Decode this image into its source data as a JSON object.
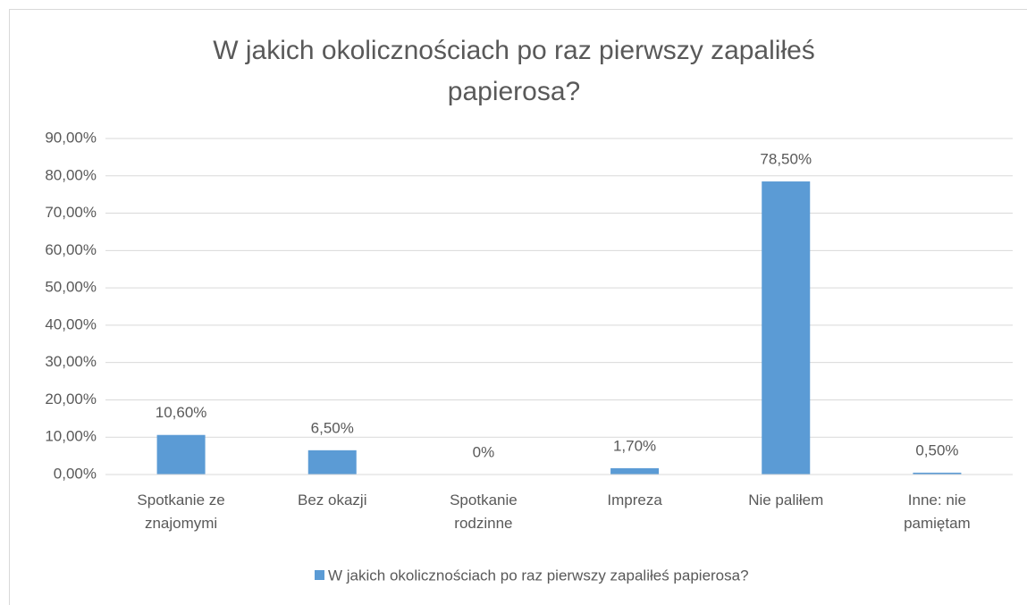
{
  "chart_data": {
    "type": "bar",
    "title": "W jakich okolicznościach po raz pierwszy zapaliłeś papierosa?",
    "categories": [
      "Spotkanie ze znajomymi",
      "Bez okazji",
      "Spotkanie rodzinne",
      "Impreza",
      "Nie paliłem",
      "Inne: nie pamiętam"
    ],
    "series": [
      {
        "name": "W jakich okolicznościach po raz pierwszy zapaliłeś papierosa?",
        "color": "#5b9bd5",
        "values": [
          10.6,
          6.5,
          0,
          1.7,
          78.5,
          0.5
        ],
        "value_labels": [
          "10,60%",
          "6,50%",
          "0%",
          "1,70%",
          "78,50%",
          "0,50%"
        ]
      }
    ],
    "ylim": [
      0,
      90
    ],
    "yticks": [
      {
        "value": 0,
        "label": "0,00%"
      },
      {
        "value": 10,
        "label": "10,00%"
      },
      {
        "value": 20,
        "label": "20,00%"
      },
      {
        "value": 30,
        "label": "30,00%"
      },
      {
        "value": 40,
        "label": "40,00%"
      },
      {
        "value": 50,
        "label": "50,00%"
      },
      {
        "value": 60,
        "label": "60,00%"
      },
      {
        "value": 70,
        "label": "70,00%"
      },
      {
        "value": 80,
        "label": "80,00%"
      },
      {
        "value": 90,
        "label": "90,00%"
      }
    ],
    "grid": true,
    "legend": "bottom"
  }
}
